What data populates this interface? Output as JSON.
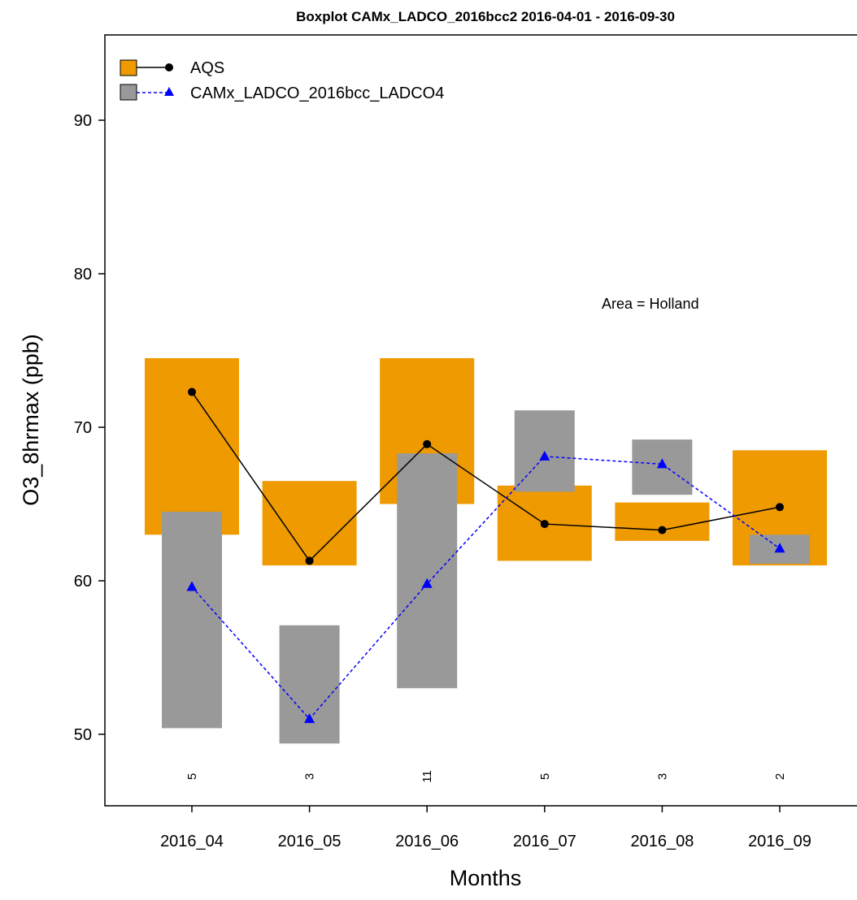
{
  "chart_data": {
    "type": "box",
    "title": "Boxplot CAMx_LADCO_2016bcc2 2016-04-01 - 2016-09-30",
    "xlabel": "Months",
    "ylabel": "O3_8hrmax (ppb)",
    "categories": [
      "2016_04",
      "2016_05",
      "2016_06",
      "2016_07",
      "2016_08",
      "2016_09"
    ],
    "counts": [
      "5",
      "3",
      "11",
      "5",
      "3",
      "2"
    ],
    "ylim": [
      45,
      95
    ],
    "yticks": [
      50,
      60,
      70,
      80,
      90
    ],
    "annotation": "Area = Holland",
    "legend_position": "top-left",
    "series": [
      {
        "name": "AQS",
        "color": "#EE9A00",
        "line_color": "#000000",
        "line_style": "solid",
        "marker": "circle",
        "q1": [
          63.0,
          61.0,
          65.0,
          61.3,
          62.6,
          61.0
        ],
        "q3": [
          74.5,
          66.5,
          74.5,
          66.2,
          65.1,
          68.5
        ],
        "median": [
          72.3,
          61.3,
          68.9,
          63.7,
          63.3,
          64.8
        ]
      },
      {
        "name": "CAMx_LADCO_2016bcc_LADCO4",
        "color": "#999999",
        "line_color": "#0000FF",
        "line_style": "dashed",
        "marker": "triangle",
        "q1": [
          50.4,
          49.4,
          53.0,
          65.8,
          65.6,
          61.1
        ],
        "q3": [
          64.5,
          57.1,
          68.3,
          71.1,
          69.2,
          63.0
        ],
        "median": [
          59.6,
          51.0,
          59.8,
          68.1,
          67.6,
          62.1
        ]
      }
    ]
  }
}
